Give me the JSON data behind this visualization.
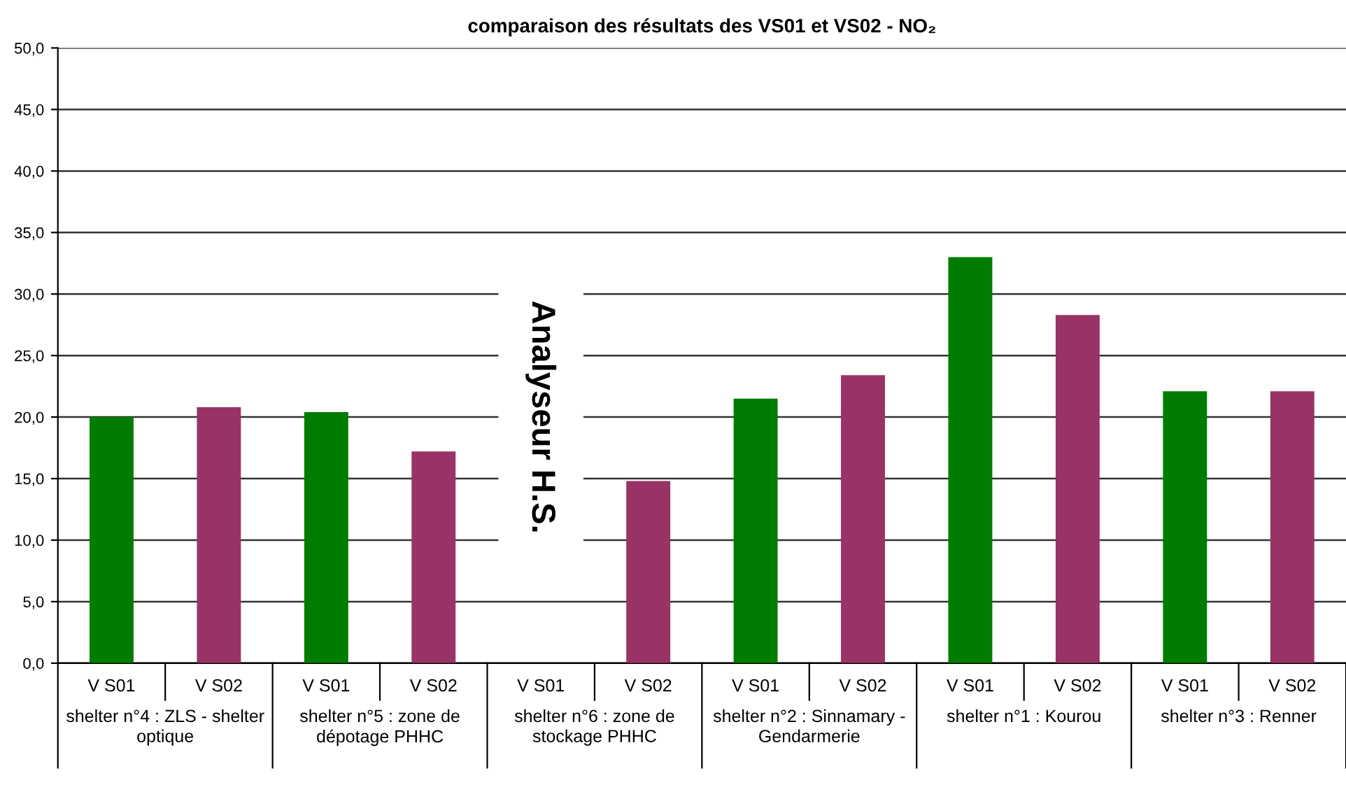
{
  "chart_data": {
    "type": "bar",
    "title": "comparaison des résultats des VS01 et VS02 - NO₂",
    "categories": [
      "V S01",
      "V S02",
      "V S01",
      "V S02",
      "V S01",
      "V S02",
      "V S01",
      "V S02",
      "V S01",
      "V S02",
      "V S01",
      "V S02"
    ],
    "values": [
      20.0,
      20.8,
      20.4,
      17.2,
      null,
      14.8,
      21.5,
      23.4,
      33.0,
      28.3,
      22.1,
      22.1
    ],
    "colors": [
      "#007c00",
      "#993366",
      "#007c00",
      "#993366",
      "#007c00",
      "#993366",
      "#007c00",
      "#993366",
      "#007c00",
      "#993366",
      "#007c00",
      "#993366"
    ],
    "ylim": [
      0,
      50
    ],
    "yticks": [
      {
        "value": 0,
        "label": "0,0"
      },
      {
        "value": 5,
        "label": "5,0"
      },
      {
        "value": 10,
        "label": "10,0"
      },
      {
        "value": 15,
        "label": "15,0"
      },
      {
        "value": 20,
        "label": "20,0"
      },
      {
        "value": 25,
        "label": "25,0"
      },
      {
        "value": 30,
        "label": "30,0"
      },
      {
        "value": 35,
        "label": "35,0"
      },
      {
        "value": 40,
        "label": "40,0"
      },
      {
        "value": 45,
        "label": "45,0"
      },
      {
        "value": 50,
        "label": "50,0"
      }
    ],
    "grid": "y",
    "annotations": [
      "Analyseur H.S.",
      "shelter n°4 : ZLS - shelter\noptique",
      "shelter n°5 : zone de\ndépotage PHHC",
      "shelter n°6 : zone de\nstockage PHHC",
      "shelter n°2 : Sinnamary -\nGendarmerie",
      "shelter n°1 : Kourou",
      "shelter n°3 : Renner"
    ]
  }
}
